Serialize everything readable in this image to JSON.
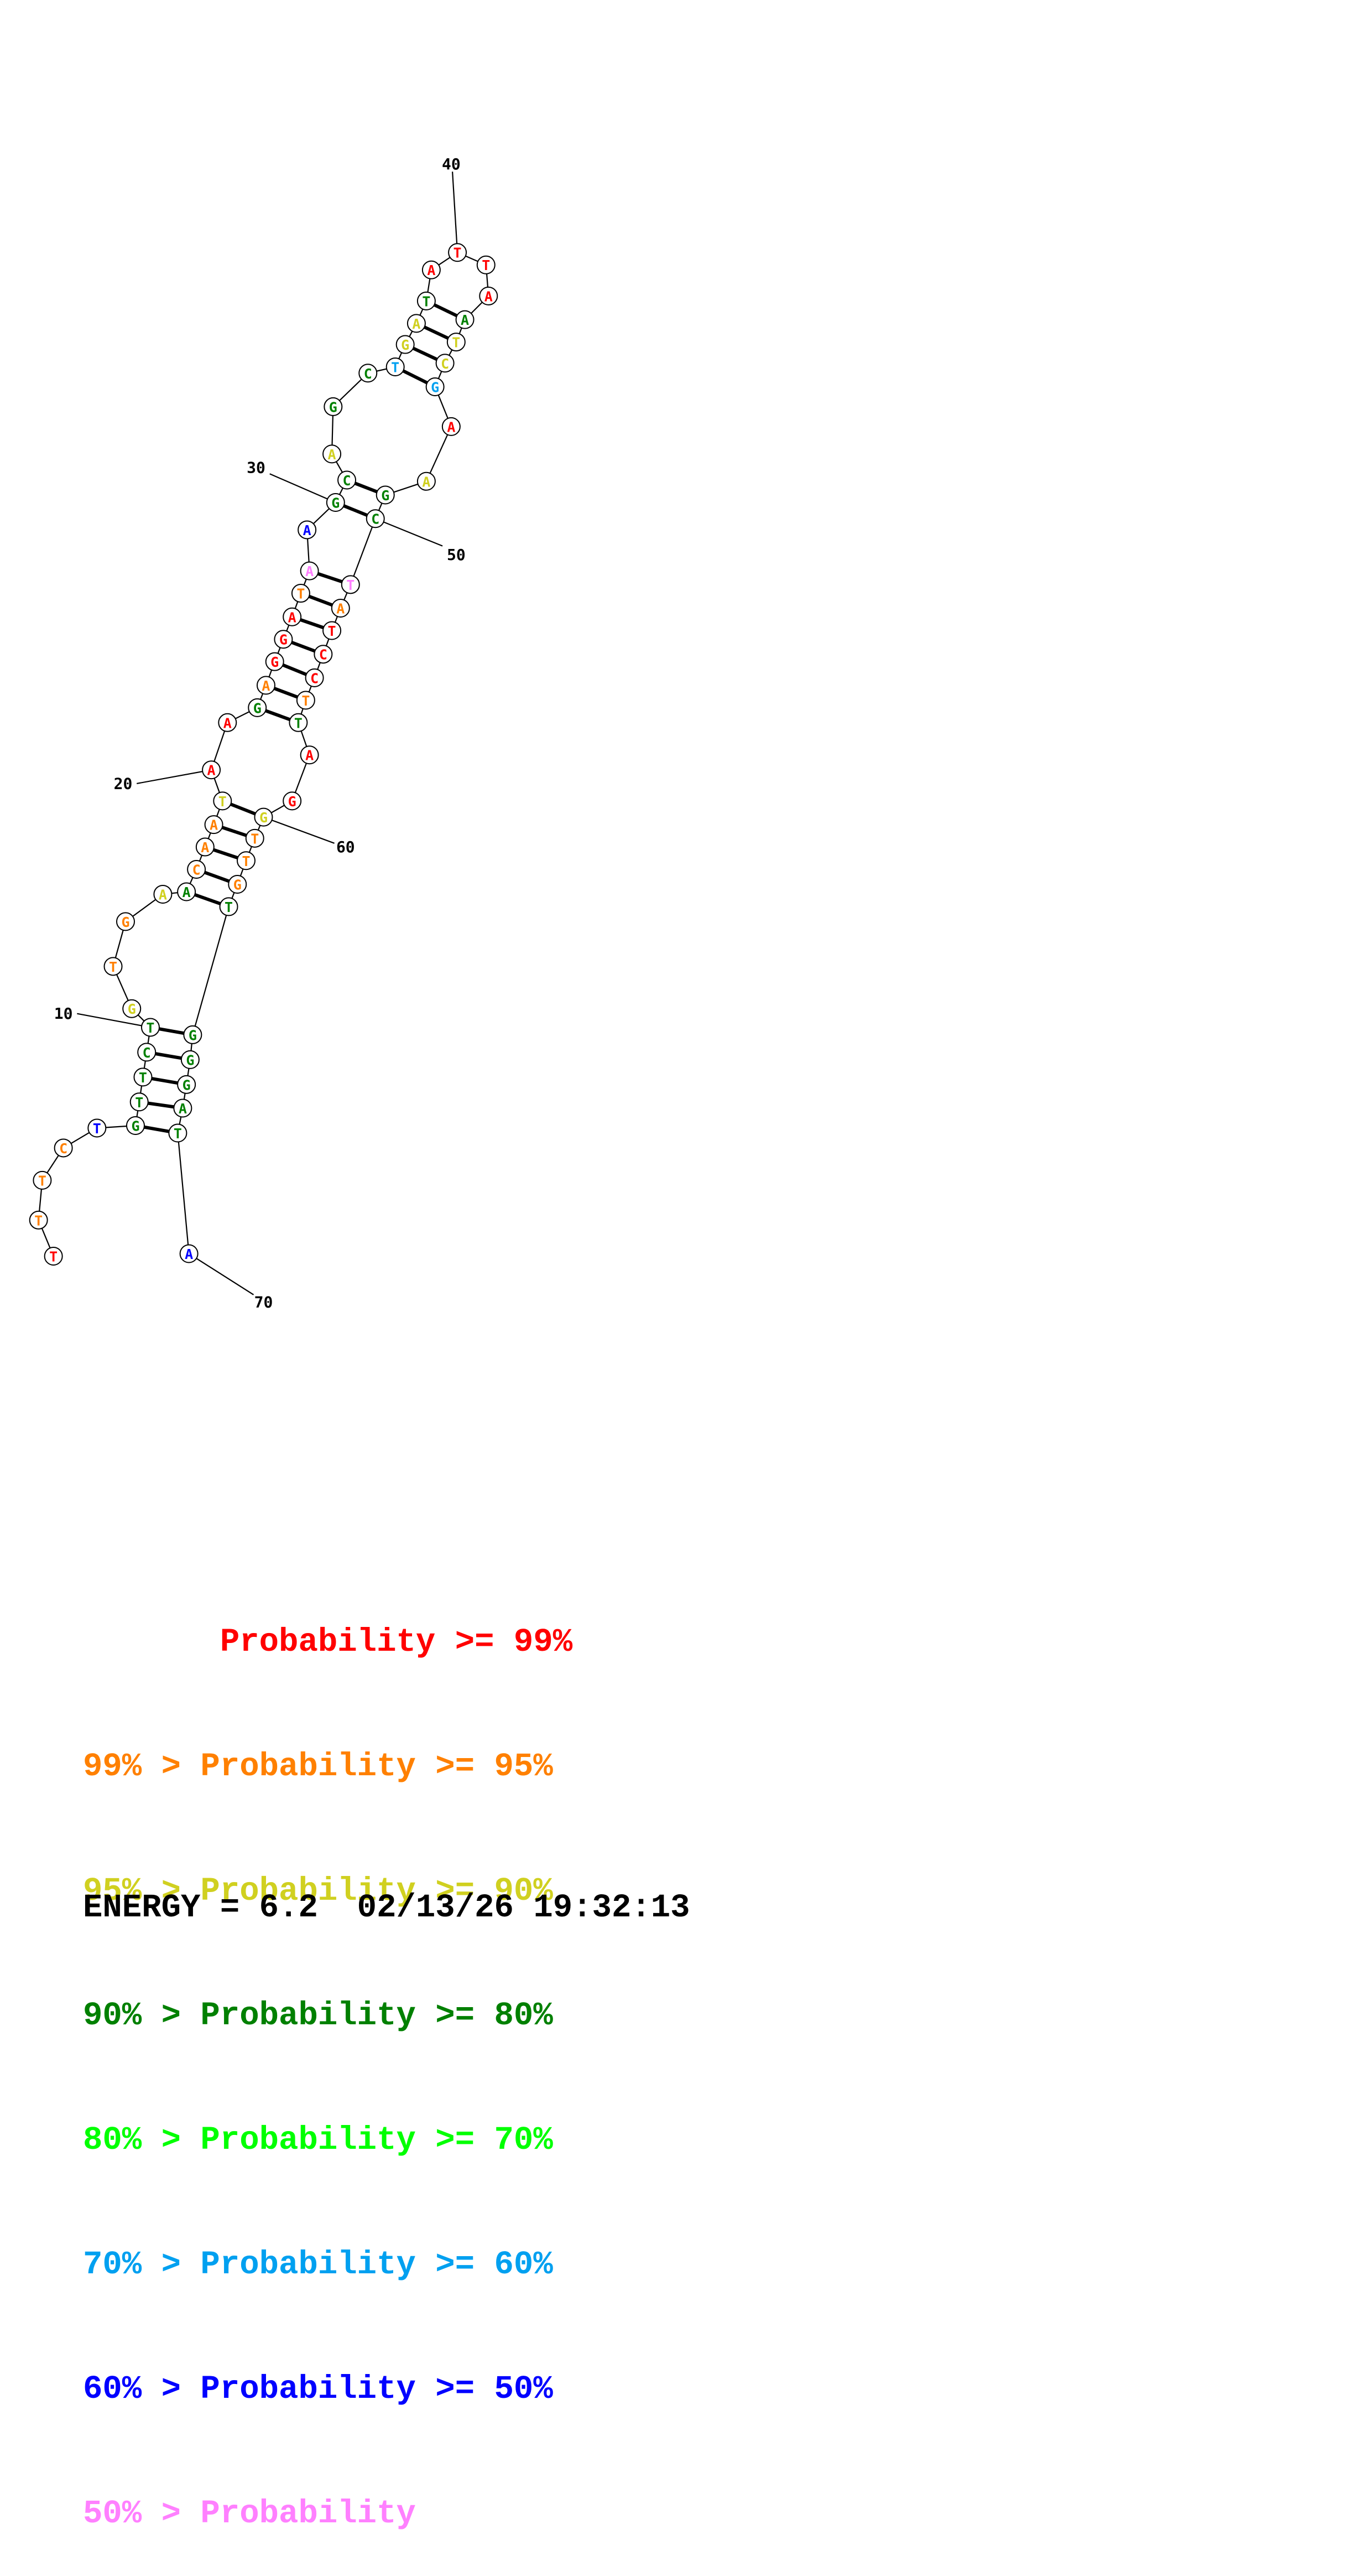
{
  "structure": {
    "nucleotides": [
      {
        "n": 1,
        "base": "T",
        "color": "#ff0000"
      },
      {
        "n": 2,
        "base": "T",
        "color": "#ff8000"
      },
      {
        "n": 3,
        "base": "T",
        "color": "#ff8000"
      },
      {
        "n": 4,
        "base": "C",
        "color": "#ff8000"
      },
      {
        "n": 5,
        "base": "T",
        "color": "#0000ff"
      },
      {
        "n": 6,
        "base": "G",
        "color": "#008000"
      },
      {
        "n": 7,
        "base": "T",
        "color": "#008000"
      },
      {
        "n": 8,
        "base": "T",
        "color": "#008000"
      },
      {
        "n": 9,
        "base": "C",
        "color": "#008000"
      },
      {
        "n": 10,
        "base": "T",
        "color": "#008000"
      },
      {
        "n": 11,
        "base": "G",
        "color": "#d0d020"
      },
      {
        "n": 12,
        "base": "T",
        "color": "#ff8000"
      },
      {
        "n": 13,
        "base": "G",
        "color": "#ff8000"
      },
      {
        "n": 14,
        "base": "A",
        "color": "#d0d020"
      },
      {
        "n": 15,
        "base": "A",
        "color": "#008000"
      },
      {
        "n": 16,
        "base": "C",
        "color": "#ff8000"
      },
      {
        "n": 17,
        "base": "A",
        "color": "#ff8000"
      },
      {
        "n": 18,
        "base": "A",
        "color": "#ff8000"
      },
      {
        "n": 19,
        "base": "T",
        "color": "#d0d020"
      },
      {
        "n": 20,
        "base": "A",
        "color": "#ff0000"
      },
      {
        "n": 21,
        "base": "A",
        "color": "#ff0000"
      },
      {
        "n": 22,
        "base": "G",
        "color": "#008000"
      },
      {
        "n": 23,
        "base": "A",
        "color": "#ff8000"
      },
      {
        "n": 24,
        "base": "G",
        "color": "#ff0000"
      },
      {
        "n": 25,
        "base": "G",
        "color": "#ff0000"
      },
      {
        "n": 26,
        "base": "A",
        "color": "#ff0000"
      },
      {
        "n": 27,
        "base": "T",
        "color": "#ff8000"
      },
      {
        "n": 28,
        "base": "A",
        "color": "#ff80ff"
      },
      {
        "n": 29,
        "base": "A",
        "color": "#0000ff"
      },
      {
        "n": 30,
        "base": "G",
        "color": "#008000"
      },
      {
        "n": 31,
        "base": "C",
        "color": "#008000"
      },
      {
        "n": 32,
        "base": "A",
        "color": "#d0d020"
      },
      {
        "n": 33,
        "base": "G",
        "color": "#008000"
      },
      {
        "n": 34,
        "base": "C",
        "color": "#008000"
      },
      {
        "n": 35,
        "base": "T",
        "color": "#00a0f0"
      },
      {
        "n": 36,
        "base": "G",
        "color": "#d0d020"
      },
      {
        "n": 37,
        "base": "A",
        "color": "#d0d020"
      },
      {
        "n": 38,
        "base": "T",
        "color": "#008000"
      },
      {
        "n": 39,
        "base": "A",
        "color": "#ff0000"
      },
      {
        "n": 40,
        "base": "T",
        "color": "#ff0000"
      },
      {
        "n": 41,
        "base": "T",
        "color": "#ff0000"
      },
      {
        "n": 42,
        "base": "A",
        "color": "#ff0000"
      },
      {
        "n": 43,
        "base": "A",
        "color": "#008000"
      },
      {
        "n": 44,
        "base": "T",
        "color": "#d0d020"
      },
      {
        "n": 45,
        "base": "C",
        "color": "#d0d020"
      },
      {
        "n": 46,
        "base": "G",
        "color": "#00a0f0"
      },
      {
        "n": 47,
        "base": "A",
        "color": "#ff0000"
      },
      {
        "n": 48,
        "base": "A",
        "color": "#d0d020"
      },
      {
        "n": 49,
        "base": "G",
        "color": "#008000"
      },
      {
        "n": 50,
        "base": "C",
        "color": "#008000"
      },
      {
        "n": 51,
        "base": "T",
        "color": "#ff80ff"
      },
      {
        "n": 52,
        "base": "A",
        "color": "#ff8000"
      },
      {
        "n": 53,
        "base": "T",
        "color": "#ff0000"
      },
      {
        "n": 54,
        "base": "C",
        "color": "#ff0000"
      },
      {
        "n": 55,
        "base": "C",
        "color": "#ff0000"
      },
      {
        "n": 56,
        "base": "T",
        "color": "#ff8000"
      },
      {
        "n": 57,
        "base": "T",
        "color": "#008000"
      },
      {
        "n": 58,
        "base": "A",
        "color": "#ff0000"
      },
      {
        "n": 59,
        "base": "G",
        "color": "#ff0000"
      },
      {
        "n": 60,
        "base": "G",
        "color": "#d0d020"
      },
      {
        "n": 61,
        "base": "T",
        "color": "#ff8000"
      },
      {
        "n": 62,
        "base": "T",
        "color": "#ff8000"
      },
      {
        "n": 63,
        "base": "G",
        "color": "#ff8000"
      },
      {
        "n": 64,
        "base": "T",
        "color": "#008000"
      },
      {
        "n": 65,
        "base": "G",
        "color": "#008000"
      },
      {
        "n": 66,
        "base": "G",
        "color": "#008000"
      },
      {
        "n": 67,
        "base": "G",
        "color": "#008000"
      },
      {
        "n": 68,
        "base": "A",
        "color": "#008000"
      },
      {
        "n": 69,
        "base": "T",
        "color": "#008000"
      },
      {
        "n": 70,
        "base": "A",
        "color": "#0000ff"
      }
    ],
    "pairs": [
      [
        6,
        69
      ],
      [
        7,
        68
      ],
      [
        8,
        67
      ],
      [
        9,
        66
      ],
      [
        10,
        65
      ],
      [
        15,
        64
      ],
      [
        16,
        63
      ],
      [
        17,
        62
      ],
      [
        18,
        61
      ],
      [
        19,
        60
      ],
      [
        22,
        57
      ],
      [
        23,
        56
      ],
      [
        24,
        55
      ],
      [
        25,
        54
      ],
      [
        26,
        53
      ],
      [
        27,
        52
      ],
      [
        28,
        51
      ],
      [
        30,
        50
      ],
      [
        31,
        49
      ],
      [
        35,
        46
      ],
      [
        36,
        45
      ],
      [
        37,
        44
      ],
      [
        38,
        43
      ]
    ],
    "index_labels": [
      {
        "n": 10,
        "text": "10"
      },
      {
        "n": 20,
        "text": "20"
      },
      {
        "n": 30,
        "text": "30"
      },
      {
        "n": 40,
        "text": "40"
      },
      {
        "n": 50,
        "text": "50"
      },
      {
        "n": 60,
        "text": "60"
      },
      {
        "n": 70,
        "text": "70"
      }
    ]
  },
  "legend": {
    "lines": [
      {
        "text": "       Probability >= 99%",
        "color": "#ff0000"
      },
      {
        "text": "99% > Probability >= 95%",
        "color": "#ff8000"
      },
      {
        "text": "95% > Probability >= 90%",
        "color": "#d0d020"
      },
      {
        "text": "90% > Probability >= 80%",
        "color": "#008000"
      },
      {
        "text": "80% > Probability >= 70%",
        "color": "#00ff00"
      },
      {
        "text": "70% > Probability >= 60%",
        "color": "#00a0f0"
      },
      {
        "text": "60% > Probability >= 50%",
        "color": "#0000ff"
      },
      {
        "text": "50% > Probability",
        "color": "#ff80ff"
      }
    ]
  },
  "energy": {
    "text": "ENERGY = 6.2  02/13/26 19:32:13"
  }
}
